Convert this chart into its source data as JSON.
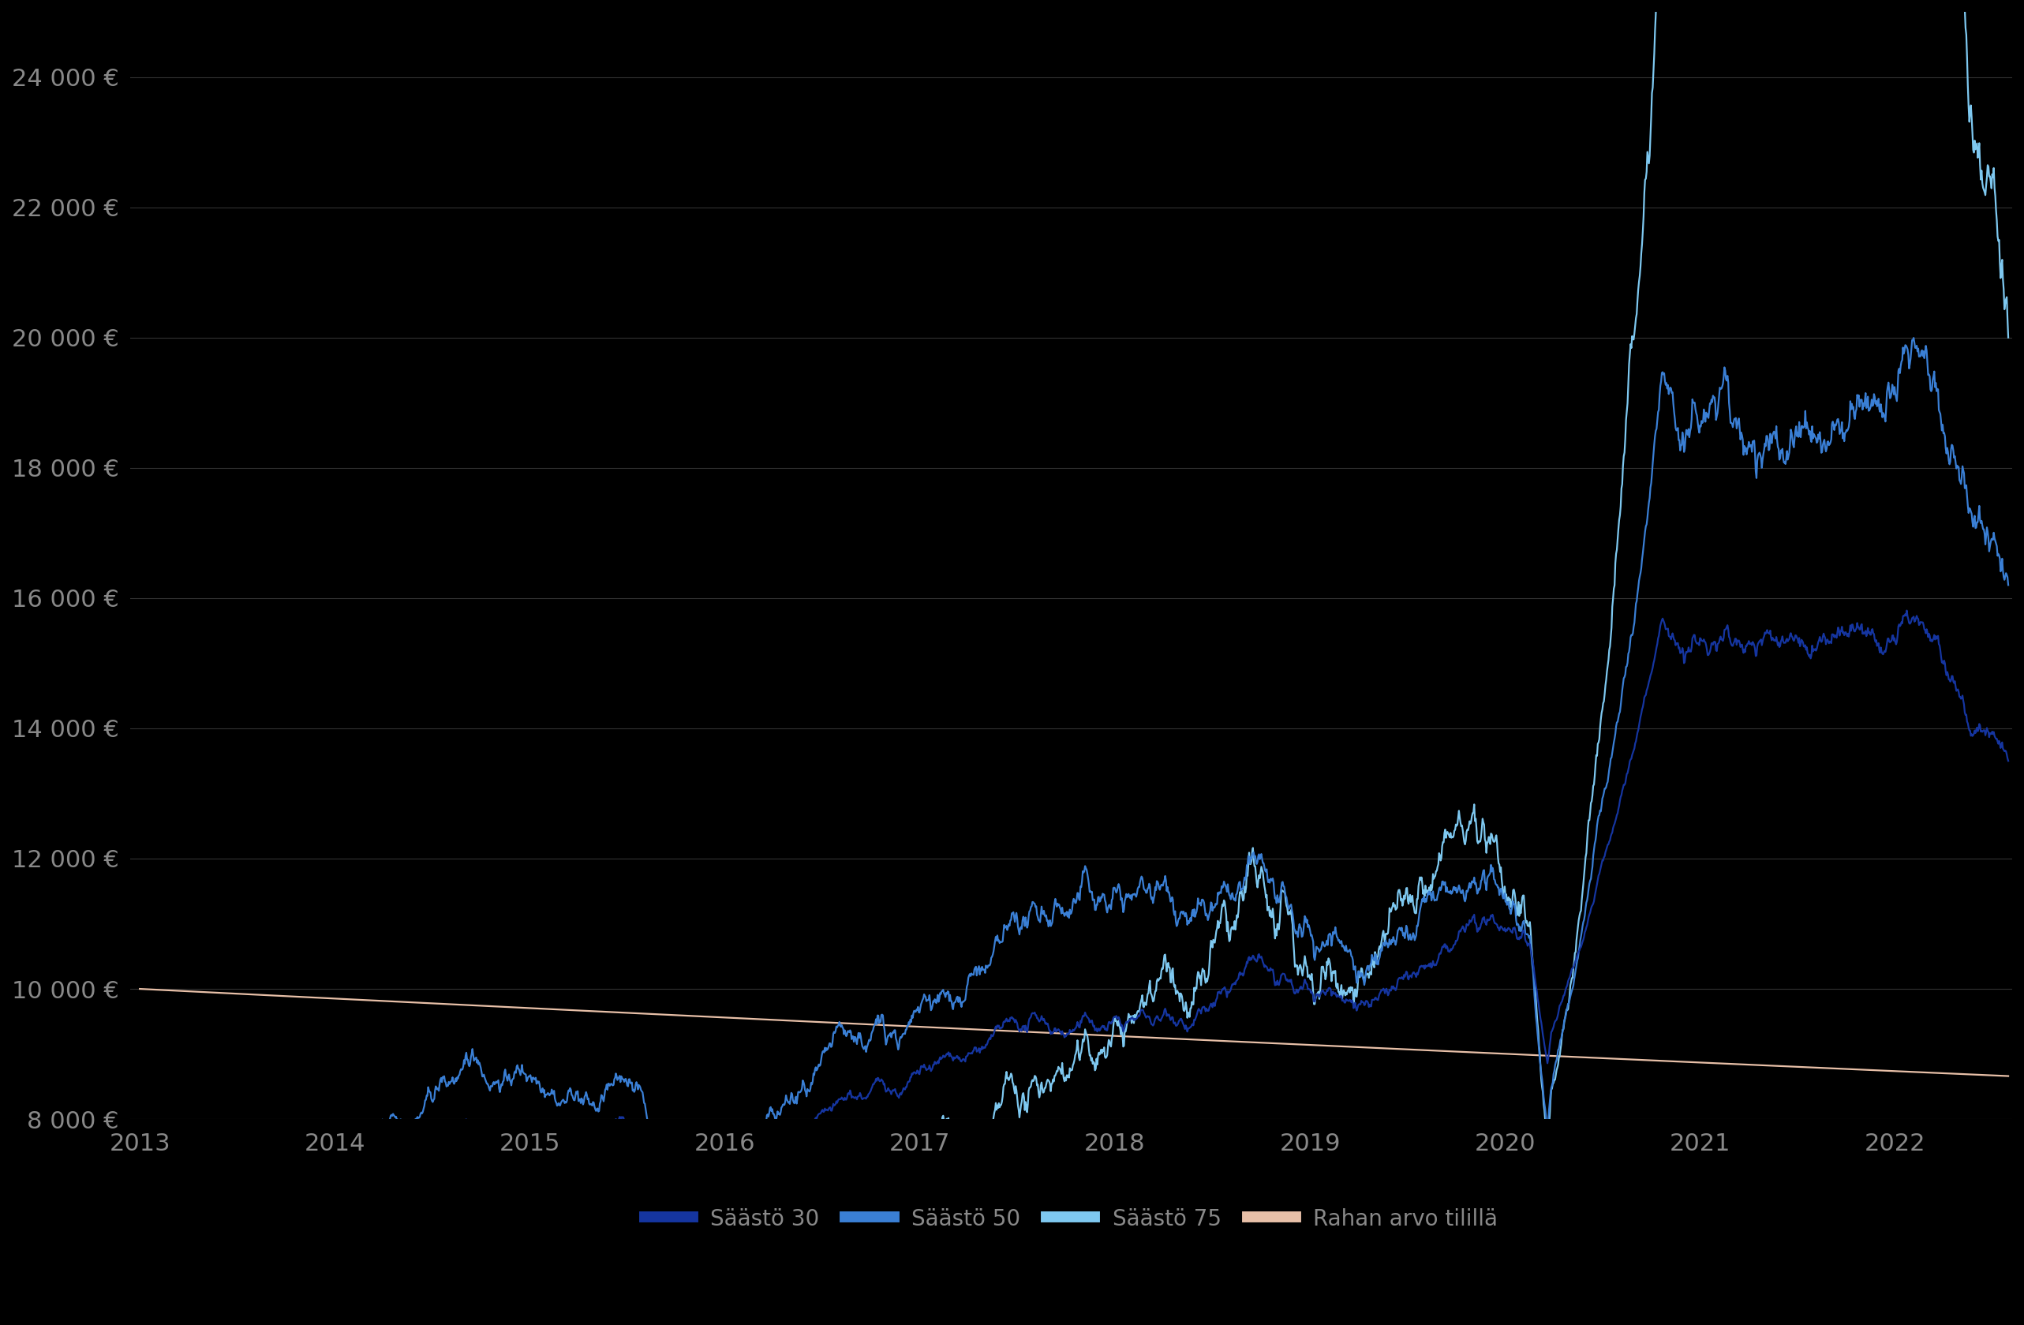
{
  "title": "",
  "background_color": "#000000",
  "text_color": "#888888",
  "grid_color": "#333333",
  "ylim": [
    8000,
    25000
  ],
  "yticks": [
    8000,
    10000,
    12000,
    14000,
    16000,
    18000,
    20000,
    22000,
    24000
  ],
  "start_year": 2013,
  "end_year": 2022.6,
  "series_colors": {
    "saasto30": "#1535a0",
    "saasto50": "#3a7fd5",
    "saasto75": "#7ec8f0",
    "rahan_arvo": "#e8c0a8"
  },
  "legend_labels": [
    "Säästö 30",
    "Säästö 50",
    "Säästö 75",
    "Rahan arvo tilillä"
  ]
}
